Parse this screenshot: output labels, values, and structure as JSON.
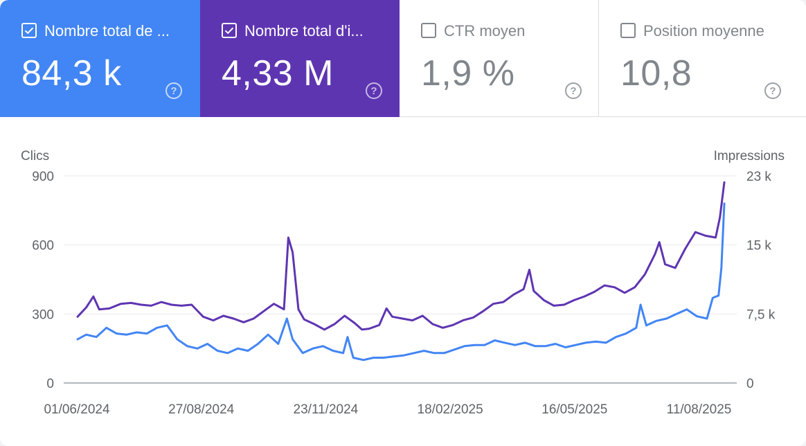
{
  "metrics": [
    {
      "label": "Nombre total de ...",
      "value": "84,3 k",
      "checked": true,
      "color": "#4285f4"
    },
    {
      "label": "Nombre total d'i...",
      "value": "4,33 M",
      "checked": true,
      "color": "#5e35b1"
    },
    {
      "label": "CTR moyen",
      "value": "1,9 %",
      "checked": false
    },
    {
      "label": "Position moyenne",
      "value": "10,8",
      "checked": false
    }
  ],
  "chart_data": {
    "type": "line",
    "ylabel_left": "Clics",
    "ylabel_right": "Impressions",
    "y_left_ticks": [
      "0",
      "300",
      "600",
      "900"
    ],
    "y_right_ticks": [
      "0",
      "7,5 k",
      "15 k",
      "23 k"
    ],
    "y_left_lim": [
      0,
      900
    ],
    "y_right_lim": [
      0,
      22500
    ],
    "x_tick_labels": [
      "01/06/2024",
      "27/08/2024",
      "23/11/2024",
      "18/02/2025",
      "16/05/2025",
      "11/08/2025"
    ],
    "x_range": [
      "2024-06-01",
      "2025-08-23"
    ],
    "series": [
      {
        "name": "Nombre total d'impressions",
        "axis": "right",
        "color": "#5e35b1",
        "points": [
          [
            "2024-06-01",
            7200
          ],
          [
            "2024-06-07",
            8200
          ],
          [
            "2024-06-12",
            9400
          ],
          [
            "2024-06-16",
            8000
          ],
          [
            "2024-06-23",
            8100
          ],
          [
            "2024-07-01",
            8600
          ],
          [
            "2024-07-08",
            8700
          ],
          [
            "2024-07-15",
            8500
          ],
          [
            "2024-07-22",
            8400
          ],
          [
            "2024-07-29",
            8800
          ],
          [
            "2024-08-05",
            8500
          ],
          [
            "2024-08-12",
            8400
          ],
          [
            "2024-08-19",
            8500
          ],
          [
            "2024-08-27",
            7200
          ],
          [
            "2024-09-03",
            6800
          ],
          [
            "2024-09-10",
            7300
          ],
          [
            "2024-09-17",
            7000
          ],
          [
            "2024-09-24",
            6600
          ],
          [
            "2024-10-01",
            7000
          ],
          [
            "2024-10-08",
            7800
          ],
          [
            "2024-10-15",
            8600
          ],
          [
            "2024-10-22",
            8000
          ],
          [
            "2024-10-25",
            15800
          ],
          [
            "2024-10-28",
            14200
          ],
          [
            "2024-11-01",
            8000
          ],
          [
            "2024-11-05",
            6900
          ],
          [
            "2024-11-12",
            6400
          ],
          [
            "2024-11-19",
            5800
          ],
          [
            "2024-11-26",
            6400
          ],
          [
            "2024-12-03",
            7300
          ],
          [
            "2024-12-10",
            6500
          ],
          [
            "2024-12-15",
            5800
          ],
          [
            "2024-12-20",
            5900
          ],
          [
            "2024-12-27",
            6300
          ],
          [
            "2025-01-01",
            8100
          ],
          [
            "2025-01-05",
            7200
          ],
          [
            "2025-01-12",
            7000
          ],
          [
            "2025-01-19",
            6800
          ],
          [
            "2025-01-26",
            7300
          ],
          [
            "2025-02-02",
            6400
          ],
          [
            "2025-02-09",
            6000
          ],
          [
            "2025-02-16",
            6300
          ],
          [
            "2025-02-23",
            6800
          ],
          [
            "2025-03-02",
            7100
          ],
          [
            "2025-03-09",
            7800
          ],
          [
            "2025-03-16",
            8600
          ],
          [
            "2025-03-23",
            8800
          ],
          [
            "2025-03-30",
            9600
          ],
          [
            "2025-04-06",
            10200
          ],
          [
            "2025-04-10",
            12300
          ],
          [
            "2025-04-13",
            10000
          ],
          [
            "2025-04-20",
            9000
          ],
          [
            "2025-04-27",
            8400
          ],
          [
            "2025-05-04",
            8500
          ],
          [
            "2025-05-11",
            9000
          ],
          [
            "2025-05-18",
            9400
          ],
          [
            "2025-05-25",
            9900
          ],
          [
            "2025-06-01",
            10600
          ],
          [
            "2025-06-08",
            10400
          ],
          [
            "2025-06-15",
            9800
          ],
          [
            "2025-06-22",
            10400
          ],
          [
            "2025-06-29",
            11800
          ],
          [
            "2025-07-06",
            14000
          ],
          [
            "2025-07-09",
            15300
          ],
          [
            "2025-07-13",
            12900
          ],
          [
            "2025-07-20",
            12500
          ],
          [
            "2025-07-27",
            14600
          ],
          [
            "2025-08-03",
            16400
          ],
          [
            "2025-08-10",
            16000
          ],
          [
            "2025-08-17",
            15800
          ],
          [
            "2025-08-20",
            18000
          ],
          [
            "2025-08-23",
            21800
          ]
        ]
      },
      {
        "name": "Nombre total de clics",
        "axis": "left",
        "color": "#4285f4",
        "points": [
          [
            "2024-06-01",
            190
          ],
          [
            "2024-06-07",
            210
          ],
          [
            "2024-06-14",
            200
          ],
          [
            "2024-06-21",
            240
          ],
          [
            "2024-06-28",
            215
          ],
          [
            "2024-07-05",
            210
          ],
          [
            "2024-07-12",
            220
          ],
          [
            "2024-07-19",
            215
          ],
          [
            "2024-07-26",
            240
          ],
          [
            "2024-08-02",
            250
          ],
          [
            "2024-08-09",
            190
          ],
          [
            "2024-08-16",
            160
          ],
          [
            "2024-08-23",
            150
          ],
          [
            "2024-08-30",
            170
          ],
          [
            "2024-09-06",
            140
          ],
          [
            "2024-09-13",
            130
          ],
          [
            "2024-09-20",
            150
          ],
          [
            "2024-09-27",
            140
          ],
          [
            "2024-10-04",
            170
          ],
          [
            "2024-10-11",
            210
          ],
          [
            "2024-10-18",
            170
          ],
          [
            "2024-10-24",
            280
          ],
          [
            "2024-10-28",
            190
          ],
          [
            "2024-11-04",
            130
          ],
          [
            "2024-11-11",
            150
          ],
          [
            "2024-11-18",
            160
          ],
          [
            "2024-11-25",
            140
          ],
          [
            "2024-12-02",
            130
          ],
          [
            "2024-12-05",
            200
          ],
          [
            "2024-12-09",
            110
          ],
          [
            "2024-12-16",
            100
          ],
          [
            "2024-12-23",
            110
          ],
          [
            "2024-12-30",
            110
          ],
          [
            "2025-01-06",
            115
          ],
          [
            "2025-01-13",
            120
          ],
          [
            "2025-01-20",
            130
          ],
          [
            "2025-01-27",
            140
          ],
          [
            "2025-02-03",
            130
          ],
          [
            "2025-02-10",
            130
          ],
          [
            "2025-02-17",
            145
          ],
          [
            "2025-02-24",
            160
          ],
          [
            "2025-03-03",
            165
          ],
          [
            "2025-03-10",
            165
          ],
          [
            "2025-03-17",
            185
          ],
          [
            "2025-03-24",
            175
          ],
          [
            "2025-03-31",
            165
          ],
          [
            "2025-04-07",
            175
          ],
          [
            "2025-04-14",
            160
          ],
          [
            "2025-04-21",
            160
          ],
          [
            "2025-04-28",
            170
          ],
          [
            "2025-05-05",
            155
          ],
          [
            "2025-05-12",
            165
          ],
          [
            "2025-05-19",
            175
          ],
          [
            "2025-05-26",
            180
          ],
          [
            "2025-06-02",
            175
          ],
          [
            "2025-06-09",
            200
          ],
          [
            "2025-06-16",
            215
          ],
          [
            "2025-06-23",
            240
          ],
          [
            "2025-06-26",
            340
          ],
          [
            "2025-06-30",
            250
          ],
          [
            "2025-07-07",
            270
          ],
          [
            "2025-07-14",
            280
          ],
          [
            "2025-07-21",
            300
          ],
          [
            "2025-07-28",
            320
          ],
          [
            "2025-08-04",
            290
          ],
          [
            "2025-08-11",
            280
          ],
          [
            "2025-08-15",
            370
          ],
          [
            "2025-08-19",
            380
          ],
          [
            "2025-08-21",
            500
          ],
          [
            "2025-08-23",
            780
          ]
        ]
      }
    ]
  }
}
